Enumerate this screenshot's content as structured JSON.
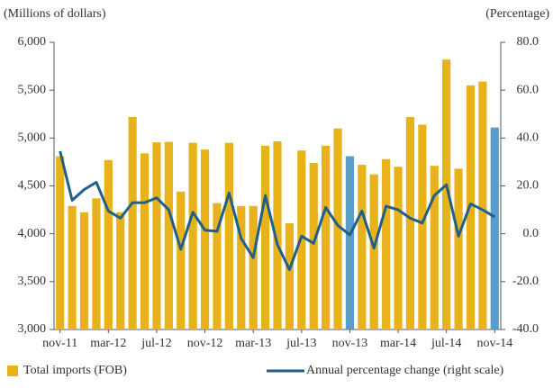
{
  "chart_data": {
    "type": "bar-line",
    "y_axis_label": "(Millions of dollars)",
    "y2_axis_label": "(Percentage)",
    "categories": [
      "nov-11",
      null,
      null,
      null,
      "mar-12",
      null,
      null,
      null,
      "jul-12",
      null,
      null,
      null,
      "nov-12",
      null,
      null,
      null,
      "mar-13",
      null,
      null,
      null,
      "jul-13",
      null,
      null,
      null,
      "nov-13",
      null,
      null,
      null,
      "mar-14",
      null,
      null,
      null,
      "jul-14",
      null,
      null,
      null,
      "nov-14"
    ],
    "series": [
      {
        "name": "Total imports (FOB)",
        "type": "bar",
        "color": "#e8b31a",
        "colors": [
          "#e8b31a",
          "#e8b31a",
          "#e8b31a",
          "#e8b31a",
          "#e8b31a",
          "#e8b31a",
          "#e8b31a",
          "#e8b31a",
          "#e8b31a",
          "#e8b31a",
          "#e8b31a",
          "#e8b31a",
          "#e8b31a",
          "#e8b31a",
          "#e8b31a",
          "#e8b31a",
          "#e8b31a",
          "#e8b31a",
          "#e8b31a",
          "#e8b31a",
          "#e8b31a",
          "#e8b31a",
          "#e8b31a",
          "#e8b31a",
          "#5b9dc9",
          "#e8b31a",
          "#e8b31a",
          "#e8b31a",
          "#e8b31a",
          "#e8b31a",
          "#e8b31a",
          "#e8b31a",
          "#e8b31a",
          "#e8b31a",
          "#e8b31a",
          "#e8b31a",
          "#5b9dc9"
        ],
        "values": [
          4810,
          4290,
          4225,
          4370,
          4770,
          4225,
          5220,
          4840,
          4955,
          4960,
          4440,
          4950,
          4880,
          4320,
          4950,
          4290,
          4290,
          4920,
          4965,
          4110,
          4870,
          4740,
          4920,
          5100,
          4810,
          4720,
          4620,
          4780,
          4700,
          5220,
          5140,
          4710,
          5820,
          4680,
          5550,
          5590,
          5110
        ]
      },
      {
        "name": "Annual percentage change (right scale)",
        "type": "line",
        "axis": "y2",
        "color": "#1f5f8b",
        "values": [
          34.5,
          14,
          18.5,
          21.5,
          9.5,
          6.5,
          13,
          13,
          15,
          10,
          -6.5,
          9,
          1.5,
          1,
          17,
          -2,
          -10,
          16,
          -4.5,
          -15,
          -1,
          -4,
          11,
          3.5,
          -0.5,
          9.5,
          -6,
          11.5,
          10,
          6.5,
          4.5,
          16,
          20.5,
          -1,
          12.5,
          10,
          7
        ]
      }
    ],
    "ylim": [
      3000,
      6000
    ],
    "yticks": [
      {
        "value": 3000,
        "label": "3,000"
      },
      {
        "value": 3500,
        "label": "3,500"
      },
      {
        "value": 4000,
        "label": "4,000"
      },
      {
        "value": 4500,
        "label": "4,500"
      },
      {
        "value": 5000,
        "label": "5,000"
      },
      {
        "value": 5500,
        "label": "5,500"
      },
      {
        "value": 6000,
        "label": "6,000"
      }
    ],
    "y2lim": [
      -40,
      80
    ],
    "y2ticks": [
      {
        "value": -40,
        "label": "-40.0"
      },
      {
        "value": -20,
        "label": "-20.0"
      },
      {
        "value": 0,
        "label": "0.0"
      },
      {
        "value": 20,
        "label": "20.0"
      },
      {
        "value": 40,
        "label": "40.0"
      },
      {
        "value": 60,
        "label": "60.0"
      },
      {
        "value": 80,
        "label": "80.0"
      }
    ]
  }
}
